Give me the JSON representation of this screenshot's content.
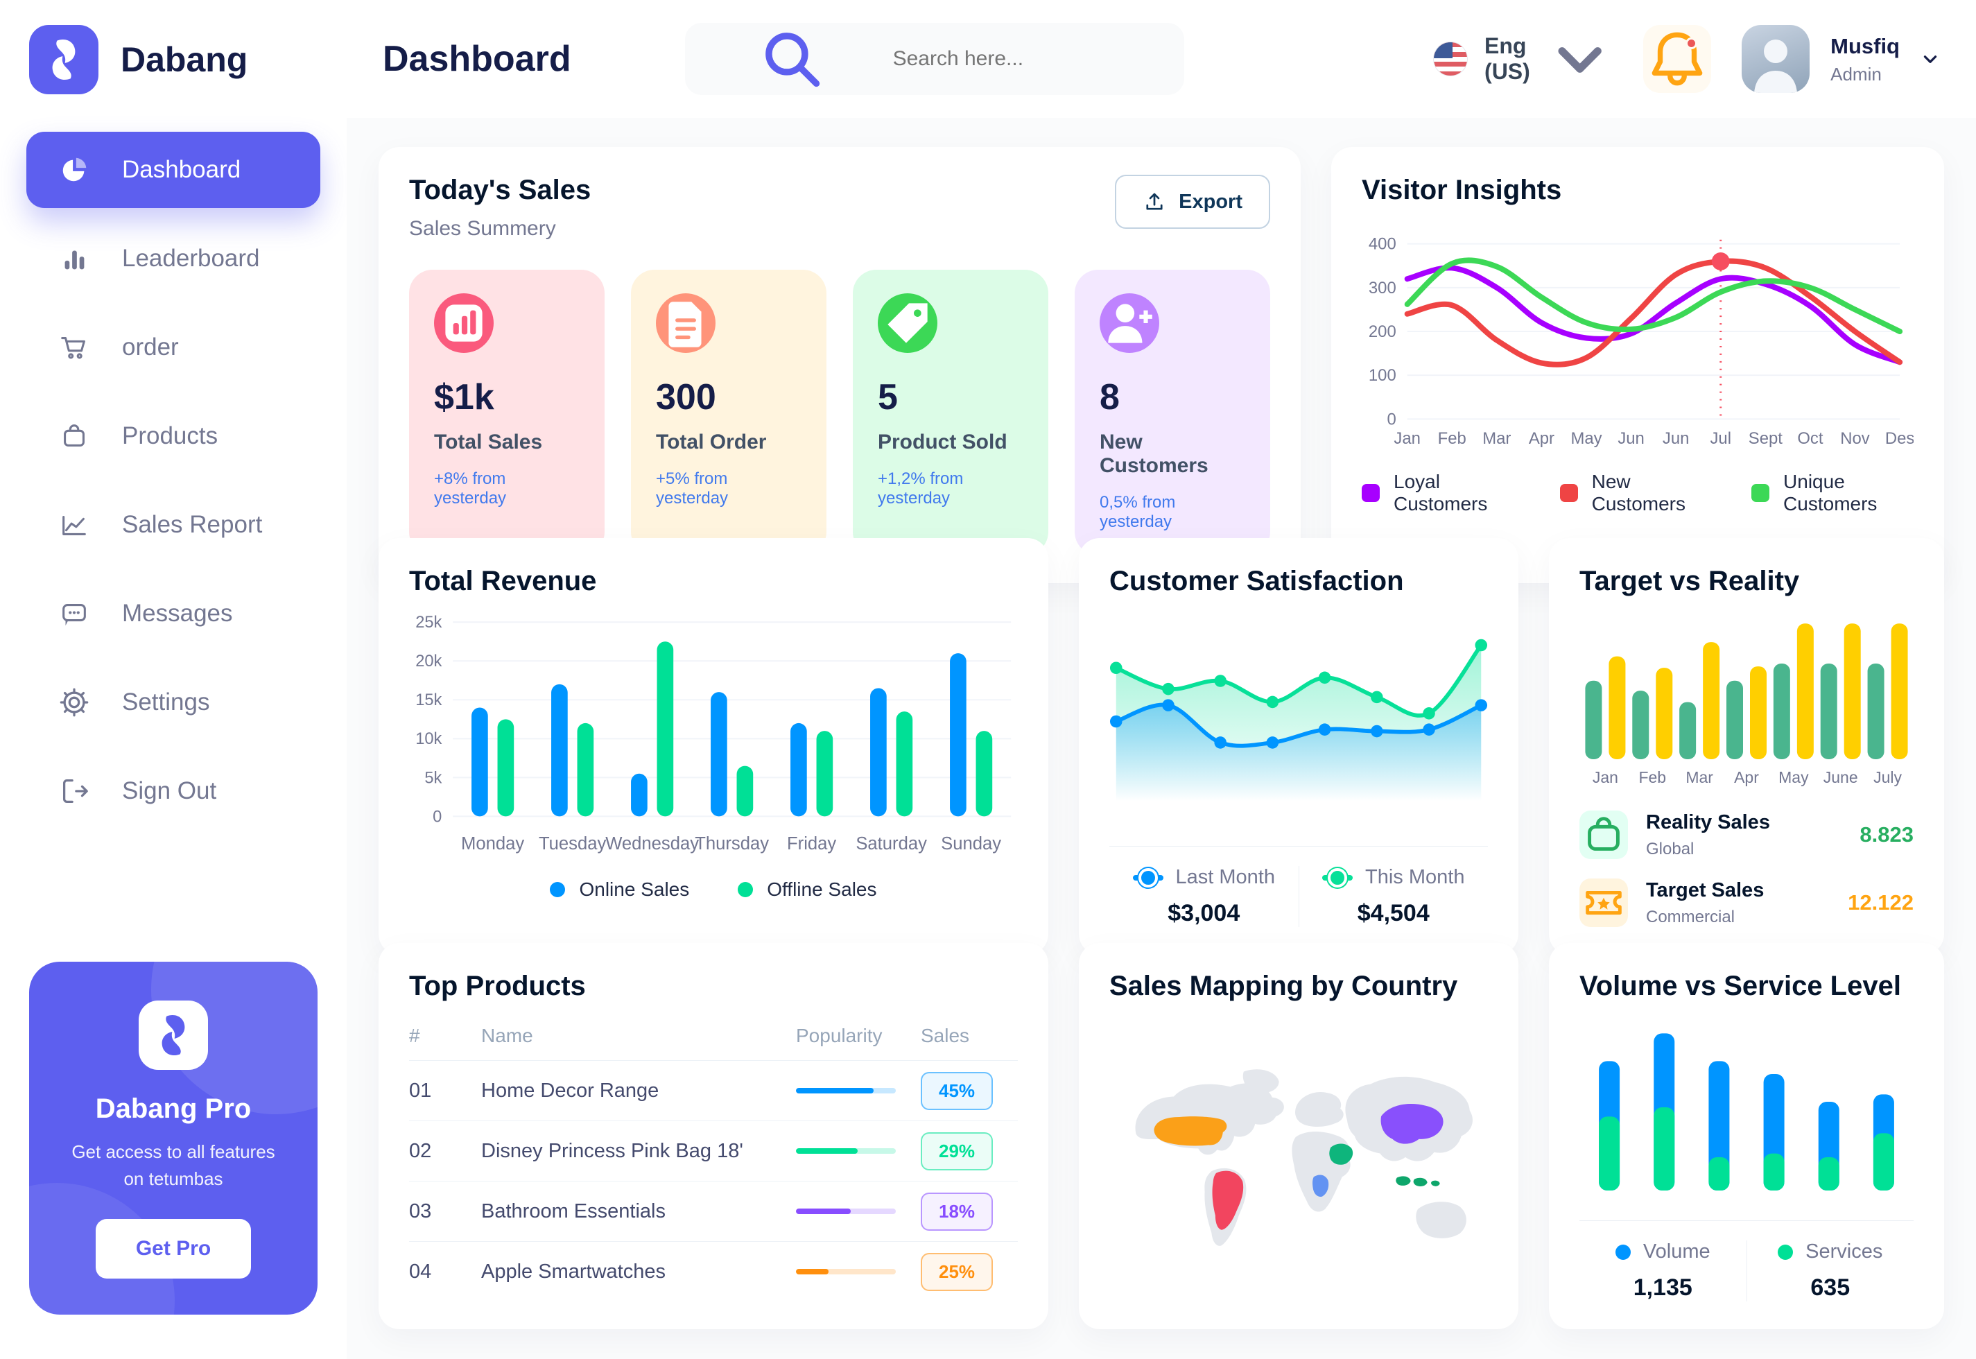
{
  "app": {
    "name": "Dabang",
    "page_title": "Dashboard"
  },
  "header": {
    "search_placeholder": "Search here...",
    "language": "Eng (US)",
    "user": {
      "name": "Musfiq",
      "role": "Admin"
    }
  },
  "sidebar": {
    "items": [
      {
        "label": "Dashboard",
        "icon": "pie-chart-icon",
        "active": true
      },
      {
        "label": "Leaderboard",
        "icon": "bar-chart-icon",
        "active": false
      },
      {
        "label": "order",
        "icon": "cart-icon",
        "active": false
      },
      {
        "label": "Products",
        "icon": "bag-icon",
        "active": false
      },
      {
        "label": "Sales Report",
        "icon": "line-chart-icon",
        "active": false
      },
      {
        "label": "Messages",
        "icon": "message-icon",
        "active": false
      },
      {
        "label": "Settings",
        "icon": "gear-icon",
        "active": false
      },
      {
        "label": "Sign Out",
        "icon": "sign-out-icon",
        "active": false
      }
    ],
    "pro_card": {
      "title": "Dabang Pro",
      "subtitle": "Get access to all features on tetumbas",
      "button": "Get Pro"
    }
  },
  "today_sales": {
    "title": "Today's Sales",
    "subtitle": "Sales Summery",
    "export_label": "Export",
    "cards": [
      {
        "value": "$1k",
        "label": "Total Sales",
        "delta": "+8% from yesterday",
        "bg": "#FFE2E5",
        "icon_bg": "#FA5A7D",
        "icon": "sales-chart-icon"
      },
      {
        "value": "300",
        "label": "Total Order",
        "delta": "+5% from yesterday",
        "bg": "#FFF4DE",
        "icon_bg": "#FF947A",
        "icon": "order-file-icon"
      },
      {
        "value": "5",
        "label": "Product Sold",
        "delta": "+1,2% from yesterday",
        "bg": "#DCFCE7",
        "icon_bg": "#3CD856",
        "icon": "tag-icon"
      },
      {
        "value": "8",
        "label": "New Customers",
        "delta": "0,5% from yesterday",
        "bg": "#F3E8FF",
        "icon_bg": "#BF83FF",
        "icon": "new-user-icon"
      }
    ]
  },
  "card_titles": {
    "visitor_insights": "Visitor Insights",
    "total_revenue": "Total Revenue",
    "customer_satisfaction": "Customer Satisfaction",
    "target_vs_reality": "Target vs Reality",
    "top_products": "Top Products",
    "sales_mapping": "Sales Mapping by Country",
    "volume_service": "Volume vs Service Level"
  },
  "top_products": {
    "headers": [
      "#",
      "Name",
      "Popularity",
      "Sales"
    ],
    "rows": [
      {
        "num": "01",
        "name": "Home Decor Range",
        "popularity": 78,
        "sales": "45%",
        "color": "#0095FF"
      },
      {
        "num": "02",
        "name": "Disney Princess Pink Bag 18'",
        "popularity": 62,
        "sales": "29%",
        "color": "#00E096"
      },
      {
        "num": "03",
        "name": "Bathroom Essentials",
        "popularity": 55,
        "sales": "18%",
        "color": "#884DFF"
      },
      {
        "num": "04",
        "name": "Apple Smartwatches",
        "popularity": 33,
        "sales": "25%",
        "color": "#FF8F0D"
      }
    ]
  },
  "target_reality_legend": [
    {
      "title": "Reality Sales",
      "subtitle": "Global",
      "value": "8.823",
      "value_color": "#27AE60",
      "icon": "bag-small-icon",
      "icon_color": "#27AE60",
      "icon_bg": "#E2FFF3"
    },
    {
      "title": "Target Sales",
      "subtitle": "Commercial",
      "value": "12.122",
      "value_color": "#FFA412",
      "icon": "ticket-icon",
      "icon_color": "#FFA412",
      "icon_bg": "#FFF4DE"
    }
  ],
  "satisfaction_legend": [
    {
      "label": "Last Month",
      "value": "$3,004",
      "color": "#0095FF"
    },
    {
      "label": "This Month",
      "value": "$4,504",
      "color": "#07E098"
    }
  ],
  "volume_legend": [
    {
      "label": "Volume",
      "value": "1,135",
      "color": "#0095FF"
    },
    {
      "label": "Services",
      "value": "635",
      "color": "#00E096"
    }
  ],
  "sales_mapping": {
    "countries": [
      {
        "id": "united-states",
        "name": "United States",
        "color": "#FBA018"
      },
      {
        "id": "brazil",
        "name": "Brazil",
        "color": "#F2455F"
      },
      {
        "id": "saudi-arabia",
        "name": "Saudi Arabia",
        "color": "#0EB57C"
      },
      {
        "id": "dr-congo",
        "name": "DR Congo",
        "color": "#6393F2"
      },
      {
        "id": "china",
        "name": "China",
        "color": "#8950FC"
      },
      {
        "id": "indonesia",
        "name": "Indonesia",
        "color": "#0EA66B"
      }
    ]
  },
  "chart_data": [
    {
      "id": "visitor_insights",
      "type": "line",
      "title": "Visitor Insights",
      "x": [
        "Jan",
        "Feb",
        "Mar",
        "Apr",
        "May",
        "Jun",
        "Jun",
        "Jul",
        "Sept",
        "Oct",
        "Nov",
        "Des"
      ],
      "ylim": [
        0,
        400
      ],
      "yticks": [
        0,
        100,
        200,
        300,
        400
      ],
      "grid": true,
      "legend_position": "bottom",
      "series": [
        {
          "name": "Loyal Customers",
          "color": "#A700FF",
          "values": [
            320,
            345,
            300,
            220,
            185,
            195,
            265,
            320,
            308,
            258,
            170,
            130
          ]
        },
        {
          "name": "New Customers",
          "color": "#EF4444",
          "values": [
            240,
            260,
            180,
            128,
            140,
            230,
            330,
            360,
            345,
            280,
            200,
            130
          ]
        },
        {
          "name": "Unique Customers",
          "color": "#3CD856",
          "values": [
            262,
            355,
            348,
            278,
            220,
            205,
            232,
            290,
            315,
            300,
            250,
            200
          ]
        }
      ],
      "marker": {
        "series": "New Customers",
        "x_index": 7,
        "value": 360,
        "style": "dotted-vertical-line"
      }
    },
    {
      "id": "total_revenue",
      "type": "bar",
      "title": "Total Revenue",
      "categories": [
        "Monday",
        "Tuesday",
        "Wednesday",
        "Thursday",
        "Friday",
        "Saturday",
        "Sunday"
      ],
      "ylim": [
        0,
        25000
      ],
      "ytick_labels": [
        "0",
        "5k",
        "10k",
        "15k",
        "20k",
        "25k"
      ],
      "grid": true,
      "legend_position": "bottom",
      "series": [
        {
          "name": "Online Sales",
          "color": "#0095FF",
          "values": [
            14000,
            17000,
            5500,
            16000,
            12000,
            16500,
            21000
          ]
        },
        {
          "name": "Offline Sales",
          "color": "#00E096",
          "values": [
            12500,
            12000,
            22500,
            6500,
            11000,
            13500,
            11000
          ]
        }
      ]
    },
    {
      "id": "customer_satisfaction",
      "type": "area",
      "title": "Customer Satisfaction",
      "x": [
        1,
        2,
        3,
        4,
        5,
        6,
        7,
        8
      ],
      "ylim": [
        0,
        100
      ],
      "grid": false,
      "legend_position": "bottom",
      "series": [
        {
          "name": "This Month",
          "color": "#07E098",
          "total": "$4,504",
          "values": [
            78,
            65,
            70,
            57,
            72,
            60,
            50,
            92
          ]
        },
        {
          "name": "Last Month",
          "color": "#0095FF",
          "total": "$3,004",
          "values": [
            45,
            55,
            32,
            32,
            40,
            39,
            40,
            55
          ]
        }
      ]
    },
    {
      "id": "target_vs_reality",
      "type": "bar",
      "title": "Target vs Reality",
      "categories": [
        "Jan",
        "Feb",
        "Mar",
        "Apr",
        "May",
        "June",
        "July"
      ],
      "ylim": [
        0,
        100
      ],
      "grid": false,
      "legend_position": "bottom-list",
      "series": [
        {
          "name": "Reality Sales",
          "color": "#4AB58E",
          "values": [
            55,
            48,
            40,
            55,
            67,
            67,
            67
          ]
        },
        {
          "name": "Target Sales",
          "color": "#FFCF00",
          "values": [
            72,
            64,
            82,
            65,
            95,
            95,
            95
          ]
        }
      ]
    },
    {
      "id": "volume_service",
      "type": "bar",
      "subtype": "stacked",
      "title": "Volume vs Service Level",
      "categories": [
        "1",
        "2",
        "3",
        "4",
        "5",
        "6"
      ],
      "ylim": [
        0,
        90
      ],
      "grid": false,
      "legend_position": "bottom",
      "series": [
        {
          "name": "Services",
          "color": "#00E096",
          "values": [
            40,
            45,
            18,
            20,
            18,
            31
          ]
        },
        {
          "name": "Volume",
          "color": "#0095FF",
          "values": [
            30,
            40,
            52,
            43,
            30,
            21
          ]
        }
      ],
      "totals": {
        "Volume": "1,135",
        "Services": "635"
      }
    }
  ]
}
